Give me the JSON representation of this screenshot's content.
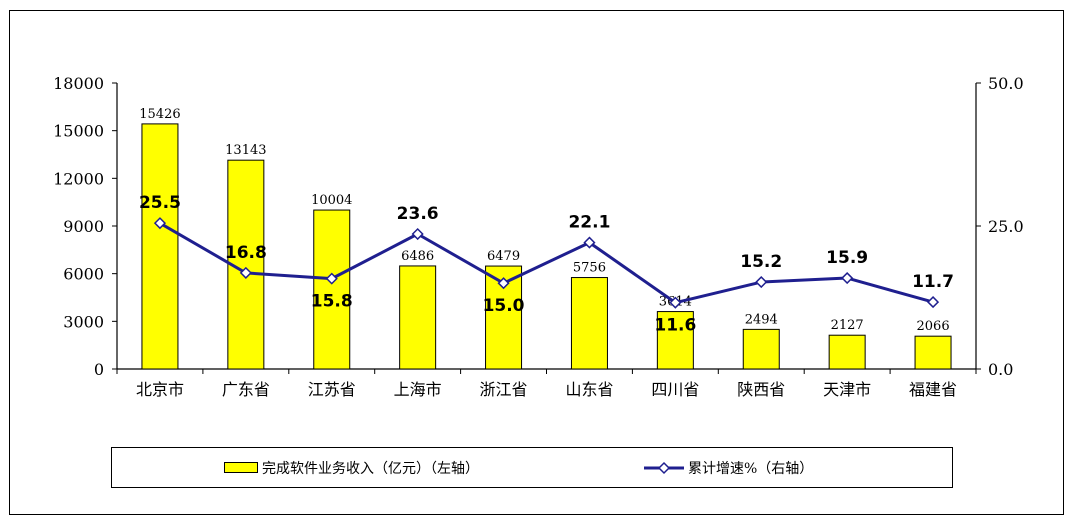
{
  "chart_data": {
    "type": "bar",
    "categories": [
      "北京市",
      "广东省",
      "江苏省",
      "上海市",
      "浙江省",
      "山东省",
      "四川省",
      "陕西省",
      "天津市",
      "福建省"
    ],
    "series": [
      {
        "name": "完成软件业务收入（亿元）（左轴）",
        "type": "bar",
        "axis": "left",
        "values": [
          15426,
          13143,
          10004,
          6486,
          6479,
          5756,
          3614,
          2494,
          2127,
          2066
        ],
        "labels": [
          "15426",
          "13143",
          "10004",
          "6486",
          "6479",
          "5756",
          "3614",
          "2494",
          "2127",
          "2066"
        ],
        "color": "#ffff00"
      },
      {
        "name": "累计增速%（右轴）",
        "type": "line",
        "axis": "right",
        "values": [
          25.5,
          16.8,
          15.8,
          23.6,
          15.0,
          22.1,
          11.6,
          15.2,
          15.9,
          11.7
        ],
        "labels": [
          "25.5",
          "16.8",
          "15.8",
          "23.6",
          "15.0",
          "22.1",
          "11.6",
          "15.2",
          "15.9",
          "11.7"
        ],
        "color": "#1f1f8f"
      }
    ],
    "y_left": {
      "min": 0,
      "max": 18000,
      "ticks": [
        "0",
        "3000",
        "6000",
        "9000",
        "12000",
        "15000",
        "18000"
      ]
    },
    "y_right": {
      "min": 0,
      "max": 50,
      "ticks": [
        "0.0",
        "25.0",
        "50.0"
      ]
    },
    "grid": false,
    "legend_position": "bottom"
  }
}
